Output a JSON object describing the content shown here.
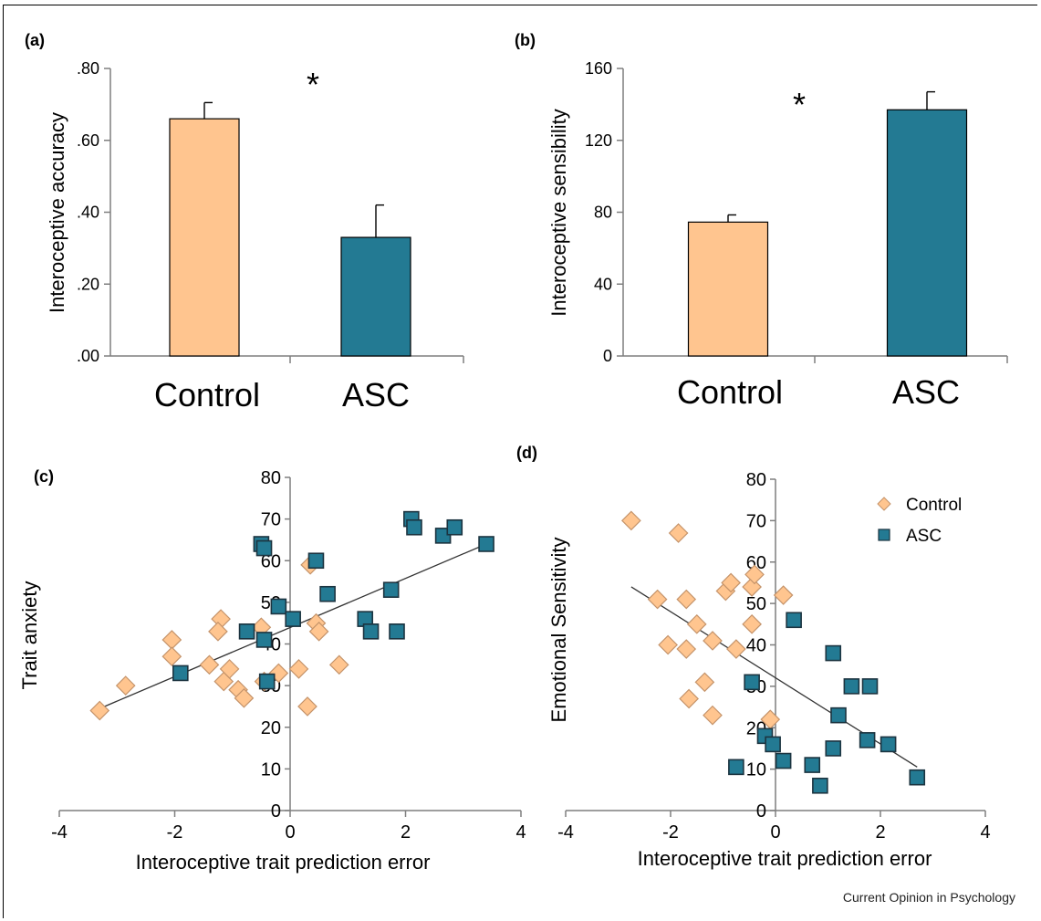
{
  "colors": {
    "control_fill": "#FFC58F",
    "asc_fill": "#237A93",
    "control_stroke": "#C4936A",
    "asc_stroke": "#1C3440",
    "axis": "#7f7f7f",
    "trendline": "#333333"
  },
  "footer": "Current Opinion in Psychology",
  "chart_data": [
    {
      "panel": "(a)",
      "type": "bar",
      "ylabel": "Interoceptive accuracy",
      "categories": [
        "Control",
        "ASC"
      ],
      "values": [
        0.66,
        0.33
      ],
      "errors": [
        0.045,
        0.09
      ],
      "ylim": [
        0,
        0.8
      ],
      "yticks": [
        0,
        0.2,
        0.4,
        0.6,
        0.8
      ],
      "yticklabels": [
        ".00",
        ".20",
        ".40",
        ".60",
        ".80"
      ],
      "annotation": "*"
    },
    {
      "panel": "(b)",
      "type": "bar",
      "ylabel": "Interoceptive sensibility",
      "categories": [
        "Control",
        "ASC"
      ],
      "values": [
        74.5,
        137
      ],
      "errors": [
        4,
        10
      ],
      "ylim": [
        0,
        160
      ],
      "yticks": [
        0,
        40,
        80,
        120,
        160
      ],
      "yticklabels": [
        "0",
        "40",
        "80",
        "120",
        "160"
      ],
      "annotation": "*"
    },
    {
      "panel": "(c)",
      "type": "scatter",
      "xlabel": "Interoceptive trait prediction error",
      "ylabel": "Trait anxiety",
      "xlim": [
        -4,
        4
      ],
      "ylim": [
        0,
        80
      ],
      "xticks": [
        -4,
        -2,
        0,
        2,
        4
      ],
      "yticks": [
        0,
        10,
        20,
        30,
        40,
        50,
        60,
        70,
        80
      ],
      "trendline": [
        [
          -3.3,
          24.5
        ],
        [
          3.4,
          64
        ]
      ],
      "series": [
        {
          "name": "Control",
          "marker": "diamond",
          "points": [
            [
              -3.3,
              24
            ],
            [
              -2.85,
              30
            ],
            [
              -2.05,
              41
            ],
            [
              -2.05,
              37
            ],
            [
              -1.4,
              35
            ],
            [
              -1.2,
              46
            ],
            [
              -1.25,
              43
            ],
            [
              -1.15,
              31
            ],
            [
              -1.05,
              34
            ],
            [
              -0.9,
              29
            ],
            [
              -0.8,
              27
            ],
            [
              -0.5,
              44
            ],
            [
              -0.45,
              31
            ],
            [
              -0.2,
              33
            ],
            [
              0.15,
              34
            ],
            [
              0.3,
              25
            ],
            [
              0.35,
              59
            ],
            [
              0.45,
              45
            ],
            [
              0.5,
              43
            ],
            [
              0.85,
              35
            ]
          ]
        },
        {
          "name": "ASC",
          "marker": "square",
          "points": [
            [
              -1.9,
              33
            ],
            [
              -0.75,
              43
            ],
            [
              -0.5,
              64
            ],
            [
              -0.45,
              63
            ],
            [
              -0.45,
              41
            ],
            [
              -0.4,
              31
            ],
            [
              -0.2,
              49
            ],
            [
              0.05,
              46
            ],
            [
              0.45,
              60
            ],
            [
              0.65,
              52
            ],
            [
              1.3,
              46
            ],
            [
              1.4,
              43
            ],
            [
              1.75,
              53
            ],
            [
              1.85,
              43
            ],
            [
              2.1,
              70
            ],
            [
              2.15,
              68
            ],
            [
              2.65,
              66
            ],
            [
              2.85,
              68
            ],
            [
              3.4,
              64
            ]
          ]
        }
      ]
    },
    {
      "panel": "(d)",
      "type": "scatter",
      "xlabel": "Interoceptive trait prediction error",
      "ylabel": "Emotional Sensitivity",
      "xlim": [
        -4,
        4
      ],
      "ylim": [
        0,
        80
      ],
      "xticks": [
        -4,
        -2,
        0,
        2,
        4
      ],
      "yticks": [
        0,
        10,
        20,
        30,
        40,
        50,
        60,
        70,
        80
      ],
      "legend": {
        "position": "top-right",
        "entries": [
          "Control",
          "ASC"
        ]
      },
      "trendline": [
        [
          -2.75,
          54
        ],
        [
          2.7,
          10.5
        ]
      ],
      "series": [
        {
          "name": "Control",
          "marker": "diamond",
          "points": [
            [
              -2.75,
              70
            ],
            [
              -2.25,
              51
            ],
            [
              -1.85,
              67
            ],
            [
              -2.05,
              40
            ],
            [
              -1.7,
              51
            ],
            [
              -1.7,
              39
            ],
            [
              -1.5,
              45
            ],
            [
              -1.35,
              31
            ],
            [
              -1.2,
              41
            ],
            [
              -1.65,
              27
            ],
            [
              -1.2,
              23
            ],
            [
              -0.95,
              53
            ],
            [
              -0.85,
              55
            ],
            [
              -0.75,
              39
            ],
            [
              -0.45,
              54
            ],
            [
              -0.4,
              57
            ],
            [
              -0.45,
              45
            ],
            [
              -0.1,
              22
            ],
            [
              0.15,
              52
            ]
          ]
        },
        {
          "name": "ASC",
          "marker": "square",
          "points": [
            [
              -0.45,
              31
            ],
            [
              -0.2,
              18
            ],
            [
              -0.05,
              16
            ],
            [
              0.15,
              12
            ],
            [
              0.35,
              46
            ],
            [
              -0.75,
              10.5
            ],
            [
              0.7,
              11
            ],
            [
              0.85,
              6
            ],
            [
              1.1,
              38
            ],
            [
              1.1,
              15
            ],
            [
              1.2,
              23
            ],
            [
              1.45,
              30
            ],
            [
              1.8,
              30
            ],
            [
              1.75,
              17
            ],
            [
              2.15,
              16
            ],
            [
              2.7,
              8
            ]
          ]
        }
      ]
    }
  ]
}
